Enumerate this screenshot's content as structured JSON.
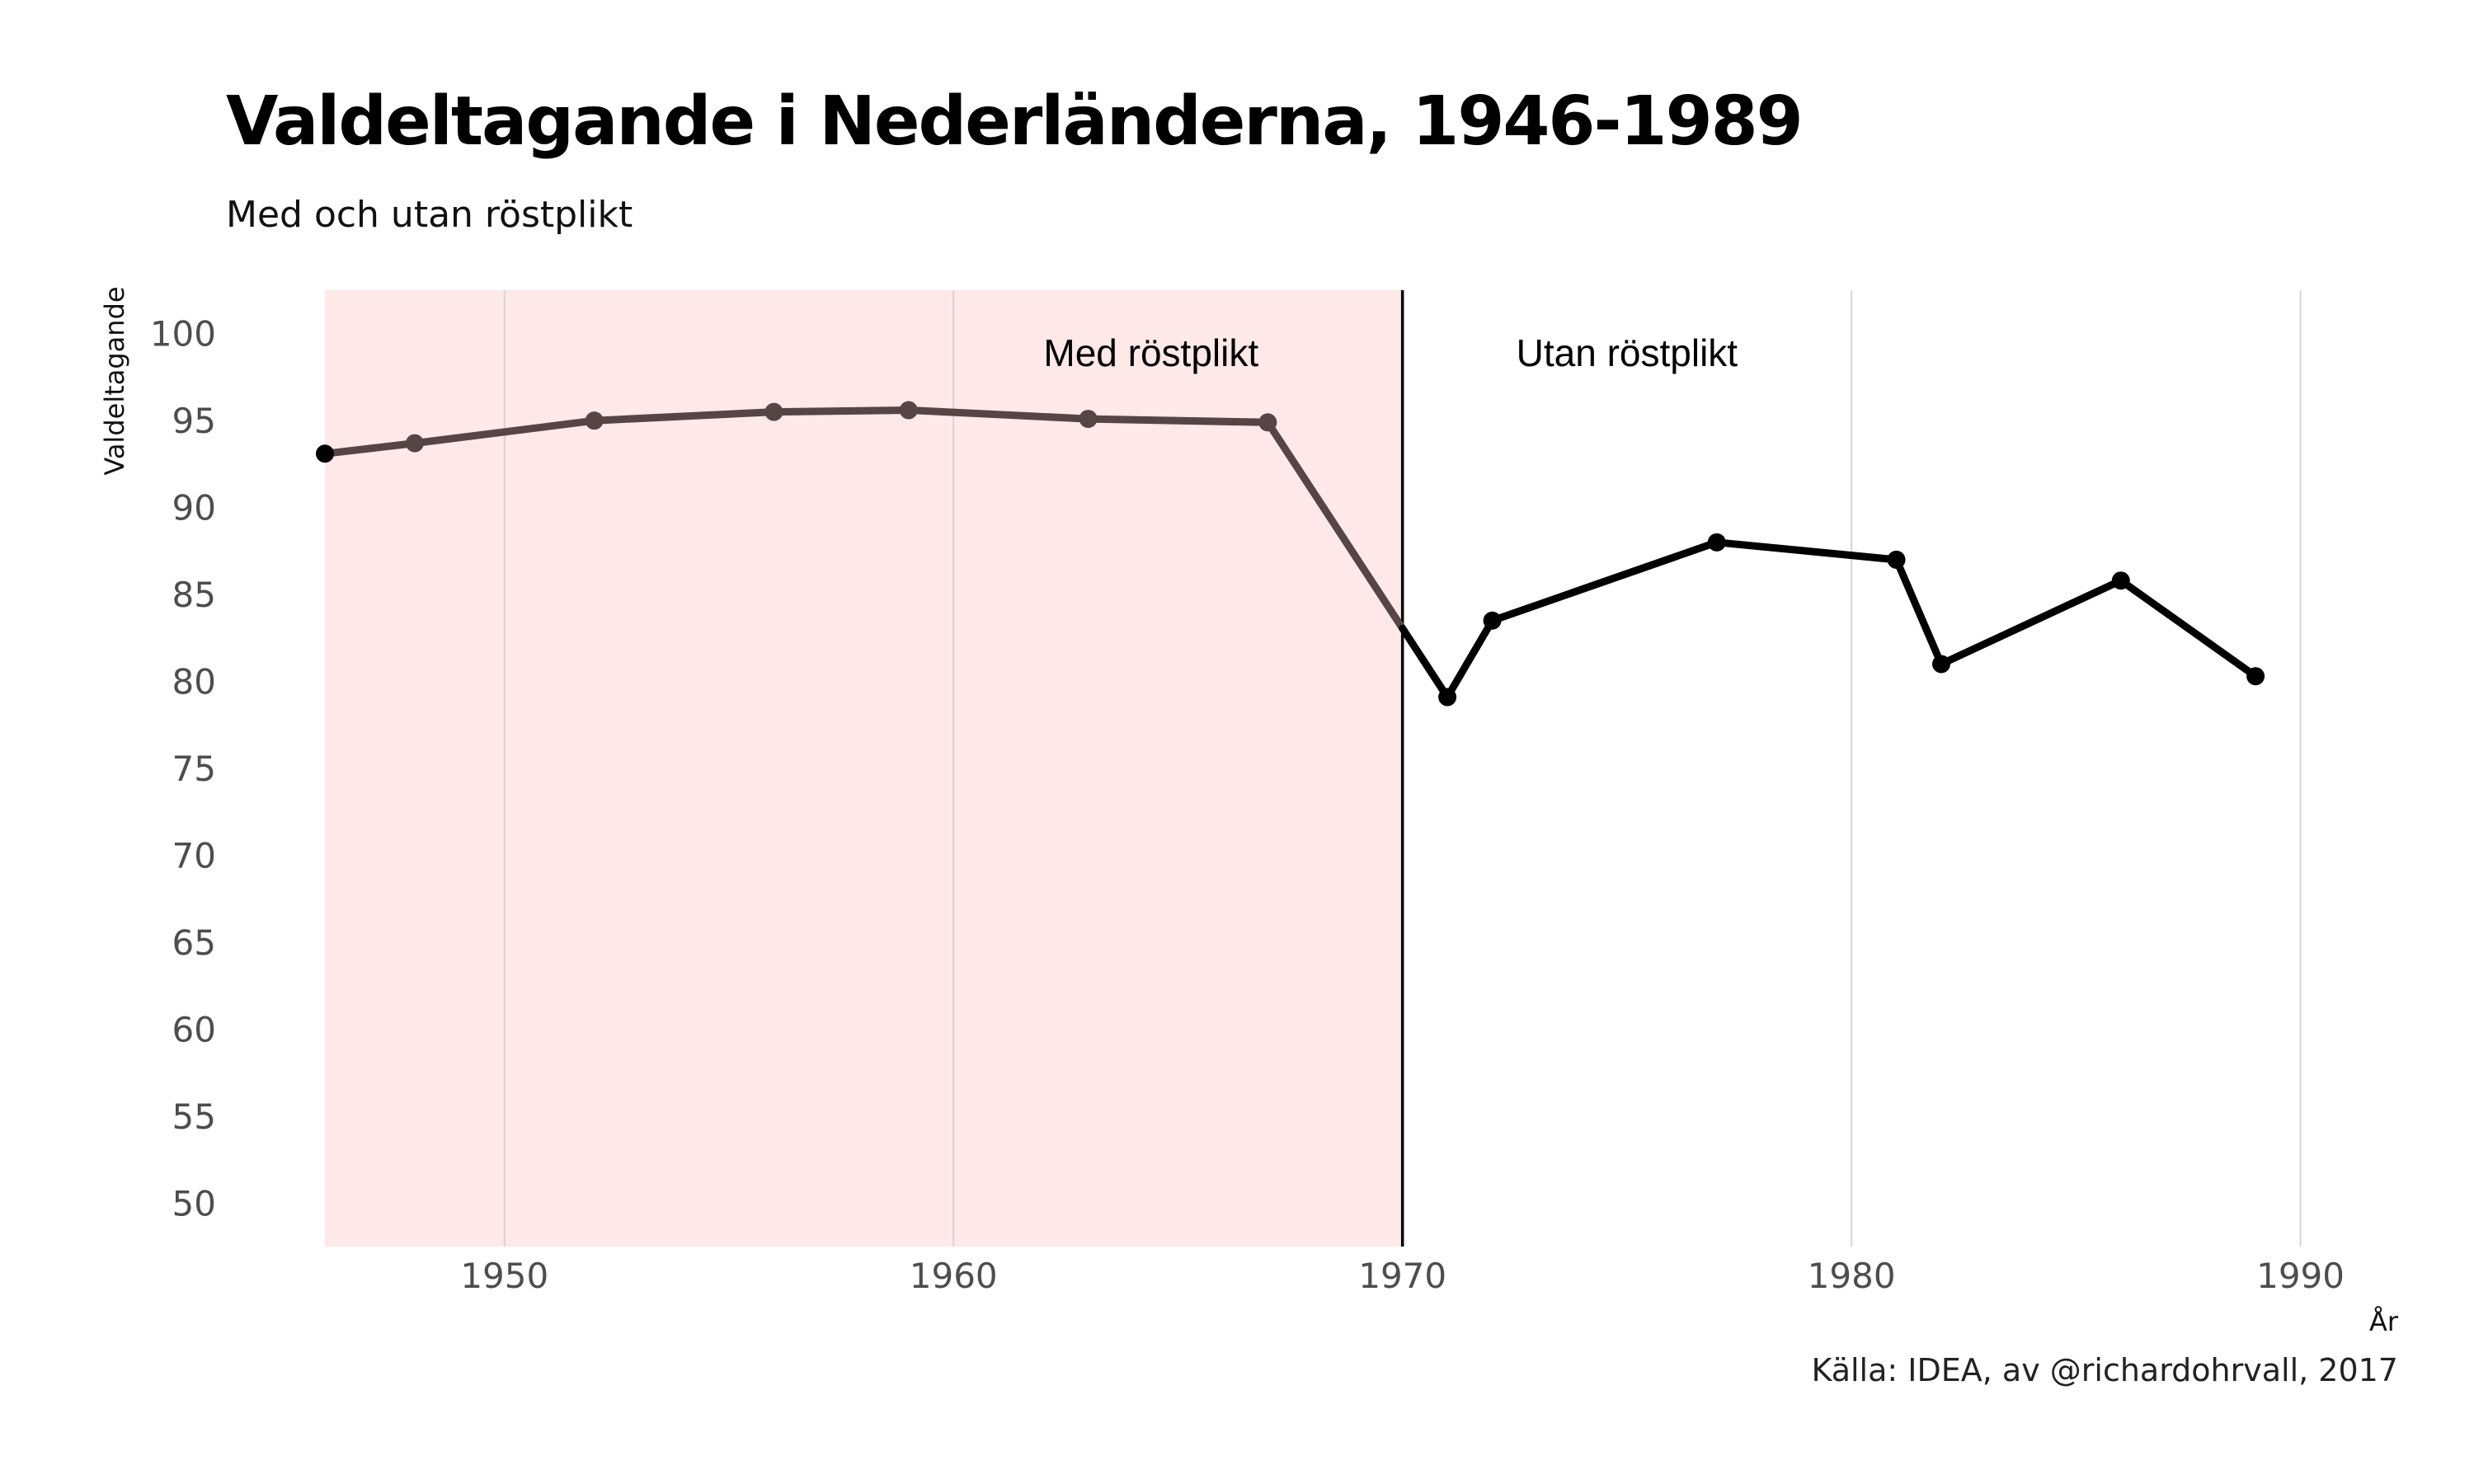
{
  "title": "Valdeltagande i Nederländerna, 1946-1989",
  "subtitle": "Med och utan röstplikt",
  "caption": "Källa: IDEA, av @richardohrvall, 2017",
  "chart_data": {
    "type": "line",
    "xlabel": "År",
    "ylabel": "Valdeltagande",
    "xlim": [
      1946,
      1991
    ],
    "ylim": [
      47.5,
      102.5
    ],
    "x_ticks": [
      1950,
      1960,
      1970,
      1980,
      1990
    ],
    "y_ticks": [
      50,
      55,
      60,
      65,
      70,
      75,
      80,
      85,
      90,
      95,
      100
    ],
    "grid": "vertical major lines",
    "shaded_region": {
      "x_start": 1946,
      "x_end": 1970,
      "color": "#fee8e8",
      "label": "Med röstplikt"
    },
    "cutoff_line": {
      "x": 1970,
      "color": "#000000"
    },
    "unshaded_label": "Utan röstplikt",
    "series": [
      {
        "x": [
          1946,
          1948,
          1952,
          1956,
          1959,
          1963,
          1967,
          1971,
          1972,
          1977,
          1981,
          1982,
          1986,
          1989
        ],
        "y": [
          93.1,
          93.7,
          95.0,
          95.5,
          95.6,
          95.1,
          94.9,
          79.1,
          83.5,
          88.0,
          87.0,
          81.0,
          85.8,
          80.3
        ],
        "color_before": "#574444",
        "color_after": "#000000"
      }
    ]
  }
}
